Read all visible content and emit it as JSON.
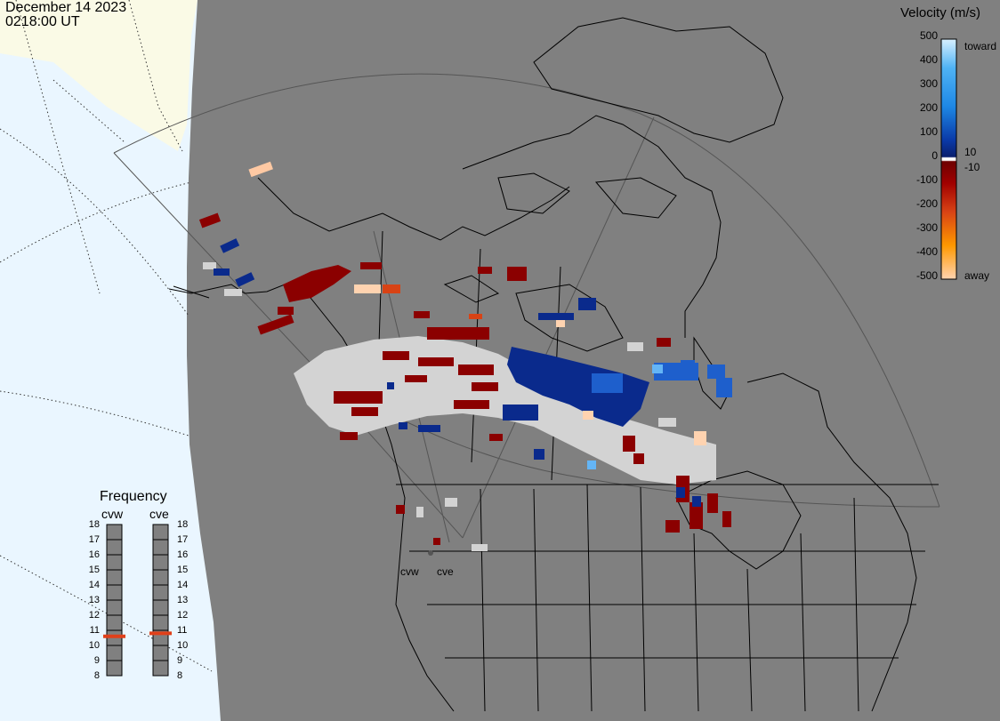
{
  "header": {
    "date": "December 14 2023",
    "time": "0218:00 UT"
  },
  "legend": {
    "title": "Velocity (m/s)",
    "ticks": [
      "500",
      "400",
      "300",
      "200",
      "100",
      "0",
      "-100",
      "-200",
      "-300",
      "-400",
      "-500"
    ],
    "side_labels": [
      "toward",
      "10",
      "-10",
      "away"
    ],
    "colors": {
      "toward_high": "#d8f0ff",
      "toward_mid": "#1e88e5",
      "toward_low": "#0a2a8c",
      "away_low": "#8b0000",
      "away_mid": "#e65100",
      "away_high": "#ffd3b0",
      "ground_scatter": "#d3d3d3"
    }
  },
  "frequency_panel": {
    "title": "Frequency",
    "radars": [
      {
        "name": "cvw",
        "value_mhz": 10.6
      },
      {
        "name": "cve",
        "value_mhz": 10.8
      }
    ],
    "ticks": [
      "18",
      "17",
      "16",
      "15",
      "14",
      "13",
      "12",
      "11",
      "10",
      "9",
      "8"
    ],
    "marker_color": "#e0401a"
  },
  "sites": [
    {
      "name": "cvw"
    },
    {
      "name": "cve"
    }
  ],
  "map_colors": {
    "land_bg": "#808080",
    "polar_outside": "#eaf6ff",
    "snow": "#fafae6",
    "coast": "#000000"
  }
}
